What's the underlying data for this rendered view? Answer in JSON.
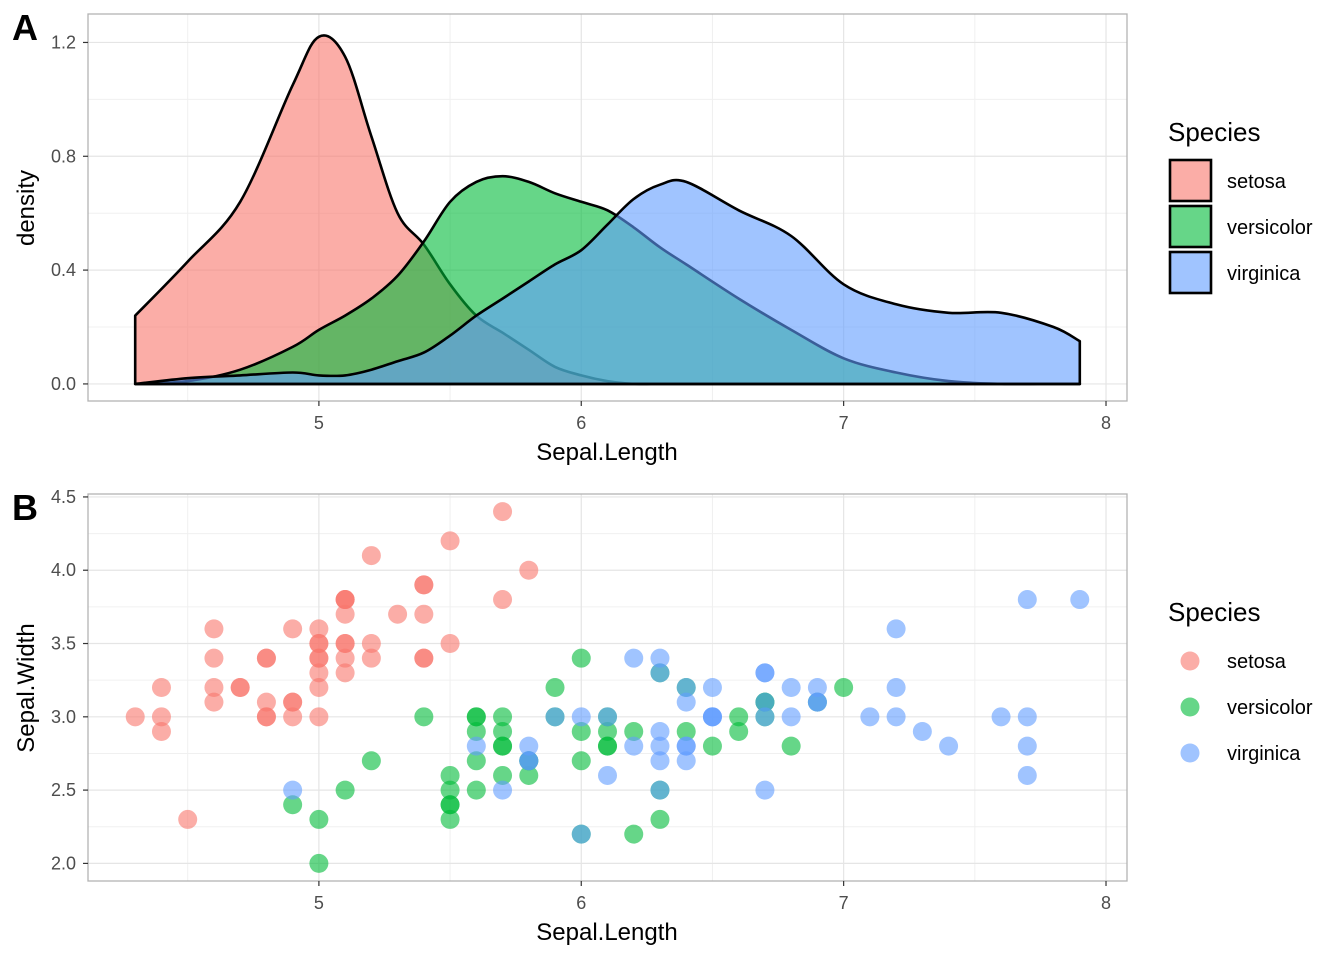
{
  "chart_data": [
    {
      "panel_label": "A",
      "type": "area",
      "title": "",
      "xlabel": "Sepal.Length",
      "ylabel": "density",
      "xlim": [
        4.12,
        8.08
      ],
      "ylim": [
        -0.06,
        1.3
      ],
      "xticks": [
        5,
        6,
        7,
        8
      ],
      "xtick_labels": [
        "5",
        "6",
        "7",
        "8"
      ],
      "yticks": [
        0,
        0.4,
        0.8,
        1.2
      ],
      "ytick_labels": [
        "0.0",
        "0.4",
        "0.8",
        "1.2"
      ],
      "grid": true,
      "legend": {
        "title": "Species",
        "placement": "right",
        "entries": [
          "setosa",
          "versicolor",
          "virginica"
        ]
      },
      "series": [
        {
          "name": "setosa",
          "color": "#F8766D",
          "x": [
            4.3,
            4.5,
            4.7,
            4.9,
            5.0,
            5.1,
            5.2,
            5.3,
            5.4,
            5.5,
            5.6,
            5.7,
            5.8,
            5.9,
            6.0,
            6.1,
            6.2,
            6.3,
            6.4,
            6.6,
            6.8,
            7.0,
            7.2,
            7.4,
            7.6,
            7.8,
            7.9
          ],
          "values": [
            0.24,
            0.43,
            0.64,
            1.05,
            1.22,
            1.15,
            0.87,
            0.6,
            0.49,
            0.35,
            0.24,
            0.18,
            0.12,
            0.06,
            0.03,
            0.01,
            0,
            0,
            0,
            0,
            0,
            0,
            0,
            0,
            0,
            0,
            0
          ]
        },
        {
          "name": "versicolor",
          "color": "#00BA38",
          "x": [
            4.3,
            4.5,
            4.7,
            4.9,
            5.0,
            5.1,
            5.2,
            5.3,
            5.4,
            5.5,
            5.6,
            5.7,
            5.8,
            5.9,
            6.0,
            6.1,
            6.2,
            6.3,
            6.4,
            6.6,
            6.8,
            7.0,
            7.2,
            7.4,
            7.6,
            7.8,
            7.9
          ],
          "values": [
            0,
            0.01,
            0.05,
            0.13,
            0.19,
            0.24,
            0.3,
            0.38,
            0.5,
            0.64,
            0.71,
            0.73,
            0.71,
            0.67,
            0.64,
            0.61,
            0.55,
            0.48,
            0.42,
            0.3,
            0.19,
            0.09,
            0.04,
            0.01,
            0,
            0,
            0
          ]
        },
        {
          "name": "virginica",
          "color": "#619CFF",
          "x": [
            4.3,
            4.5,
            4.7,
            4.9,
            5.0,
            5.1,
            5.2,
            5.3,
            5.4,
            5.5,
            5.6,
            5.7,
            5.8,
            5.9,
            6.0,
            6.1,
            6.2,
            6.3,
            6.4,
            6.6,
            6.8,
            7.0,
            7.2,
            7.4,
            7.6,
            7.8,
            7.9
          ],
          "values": [
            0,
            0.02,
            0.03,
            0.04,
            0.03,
            0.03,
            0.05,
            0.08,
            0.11,
            0.17,
            0.24,
            0.3,
            0.36,
            0.42,
            0.47,
            0.56,
            0.65,
            0.7,
            0.71,
            0.61,
            0.52,
            0.35,
            0.28,
            0.25,
            0.25,
            0.2,
            0.15
          ]
        }
      ]
    },
    {
      "panel_label": "B",
      "type": "scatter",
      "title": "",
      "xlabel": "Sepal.Length",
      "ylabel": "Sepal.Width",
      "xlim": [
        4.12,
        8.08
      ],
      "ylim": [
        1.88,
        4.52
      ],
      "xticks": [
        5,
        6,
        7,
        8
      ],
      "xtick_labels": [
        "5",
        "6",
        "7",
        "8"
      ],
      "yticks": [
        2.0,
        2.5,
        3.0,
        3.5,
        4.0,
        4.5
      ],
      "ytick_labels": [
        "2.0",
        "2.5",
        "3.0",
        "3.5",
        "4.0",
        "4.5"
      ],
      "grid": true,
      "legend": {
        "title": "Species",
        "placement": "right",
        "entries": [
          "setosa",
          "versicolor",
          "virginica"
        ]
      },
      "series": [
        {
          "name": "setosa",
          "color": "#F8766D",
          "points": [
            [
              5.1,
              3.5
            ],
            [
              4.9,
              3.0
            ],
            [
              4.7,
              3.2
            ],
            [
              4.6,
              3.1
            ],
            [
              5.0,
              3.6
            ],
            [
              5.4,
              3.9
            ],
            [
              4.6,
              3.4
            ],
            [
              5.0,
              3.4
            ],
            [
              4.4,
              2.9
            ],
            [
              4.9,
              3.1
            ],
            [
              5.4,
              3.7
            ],
            [
              4.8,
              3.4
            ],
            [
              4.8,
              3.0
            ],
            [
              4.3,
              3.0
            ],
            [
              5.8,
              4.0
            ],
            [
              5.7,
              4.4
            ],
            [
              5.4,
              3.9
            ],
            [
              5.1,
              3.5
            ],
            [
              5.7,
              3.8
            ],
            [
              5.1,
              3.8
            ],
            [
              5.4,
              3.4
            ],
            [
              5.1,
              3.7
            ],
            [
              4.6,
              3.6
            ],
            [
              5.1,
              3.3
            ],
            [
              4.8,
              3.4
            ],
            [
              5.0,
              3.0
            ],
            [
              5.0,
              3.4
            ],
            [
              5.2,
              3.5
            ],
            [
              5.2,
              3.4
            ],
            [
              4.7,
              3.2
            ],
            [
              4.8,
              3.1
            ],
            [
              5.4,
              3.4
            ],
            [
              5.2,
              4.1
            ],
            [
              5.5,
              4.2
            ],
            [
              4.9,
              3.1
            ],
            [
              5.0,
              3.2
            ],
            [
              5.5,
              3.5
            ],
            [
              4.9,
              3.6
            ],
            [
              4.4,
              3.0
            ],
            [
              5.1,
              3.4
            ],
            [
              5.0,
              3.5
            ],
            [
              4.5,
              2.3
            ],
            [
              4.4,
              3.2
            ],
            [
              5.0,
              3.5
            ],
            [
              5.1,
              3.8
            ],
            [
              4.8,
              3.0
            ],
            [
              5.1,
              3.8
            ],
            [
              4.6,
              3.2
            ],
            [
              5.3,
              3.7
            ],
            [
              5.0,
              3.3
            ]
          ]
        },
        {
          "name": "versicolor",
          "color": "#00BA38",
          "points": [
            [
              7.0,
              3.2
            ],
            [
              6.4,
              3.2
            ],
            [
              6.9,
              3.1
            ],
            [
              5.5,
              2.3
            ],
            [
              6.5,
              2.8
            ],
            [
              5.7,
              2.8
            ],
            [
              6.3,
              3.3
            ],
            [
              4.9,
              2.4
            ],
            [
              6.6,
              2.9
            ],
            [
              5.2,
              2.7
            ],
            [
              5.0,
              2.0
            ],
            [
              5.9,
              3.0
            ],
            [
              6.0,
              2.2
            ],
            [
              6.1,
              2.9
            ],
            [
              5.6,
              2.9
            ],
            [
              6.7,
              3.1
            ],
            [
              5.6,
              3.0
            ],
            [
              5.8,
              2.7
            ],
            [
              6.2,
              2.2
            ],
            [
              5.6,
              2.5
            ],
            [
              5.9,
              3.2
            ],
            [
              6.1,
              2.8
            ],
            [
              6.3,
              2.5
            ],
            [
              6.1,
              2.8
            ],
            [
              6.4,
              2.9
            ],
            [
              6.6,
              3.0
            ],
            [
              6.8,
              2.8
            ],
            [
              6.7,
              3.0
            ],
            [
              6.0,
              2.9
            ],
            [
              5.7,
              2.6
            ],
            [
              5.5,
              2.4
            ],
            [
              5.5,
              2.4
            ],
            [
              5.8,
              2.7
            ],
            [
              6.0,
              2.7
            ],
            [
              5.4,
              3.0
            ],
            [
              6.0,
              3.4
            ],
            [
              6.7,
              3.1
            ],
            [
              6.3,
              2.3
            ],
            [
              5.6,
              3.0
            ],
            [
              5.5,
              2.5
            ],
            [
              5.5,
              2.6
            ],
            [
              6.1,
              3.0
            ],
            [
              5.8,
              2.6
            ],
            [
              5.0,
              2.3
            ],
            [
              5.6,
              2.7
            ],
            [
              5.7,
              3.0
            ],
            [
              5.7,
              2.9
            ],
            [
              6.2,
              2.9
            ],
            [
              5.1,
              2.5
            ],
            [
              5.7,
              2.8
            ]
          ]
        },
        {
          "name": "virginica",
          "color": "#619CFF",
          "points": [
            [
              6.3,
              3.3
            ],
            [
              5.8,
              2.7
            ],
            [
              7.1,
              3.0
            ],
            [
              6.3,
              2.9
            ],
            [
              6.5,
              3.0
            ],
            [
              7.6,
              3.0
            ],
            [
              4.9,
              2.5
            ],
            [
              7.3,
              2.9
            ],
            [
              6.7,
              2.5
            ],
            [
              7.2,
              3.6
            ],
            [
              6.5,
              3.2
            ],
            [
              6.4,
              2.7
            ],
            [
              6.8,
              3.0
            ],
            [
              5.7,
              2.5
            ],
            [
              5.8,
              2.8
            ],
            [
              6.4,
              3.2
            ],
            [
              6.5,
              3.0
            ],
            [
              7.7,
              3.8
            ],
            [
              7.7,
              2.6
            ],
            [
              6.0,
              2.2
            ],
            [
              6.9,
              3.2
            ],
            [
              5.6,
              2.8
            ],
            [
              7.7,
              2.8
            ],
            [
              6.3,
              2.7
            ],
            [
              6.7,
              3.3
            ],
            [
              7.2,
              3.2
            ],
            [
              6.2,
              2.8
            ],
            [
              6.1,
              3.0
            ],
            [
              6.4,
              2.8
            ],
            [
              7.2,
              3.0
            ],
            [
              7.4,
              2.8
            ],
            [
              7.9,
              3.8
            ],
            [
              6.4,
              2.8
            ],
            [
              6.3,
              2.8
            ],
            [
              6.1,
              2.6
            ],
            [
              7.7,
              3.0
            ],
            [
              6.3,
              3.4
            ],
            [
              6.4,
              3.1
            ],
            [
              6.0,
              3.0
            ],
            [
              6.9,
              3.1
            ],
            [
              6.7,
              3.1
            ],
            [
              6.9,
              3.1
            ],
            [
              5.8,
              2.7
            ],
            [
              6.8,
              3.2
            ],
            [
              6.7,
              3.3
            ],
            [
              6.7,
              3.0
            ],
            [
              6.3,
              2.5
            ],
            [
              6.5,
              3.0
            ],
            [
              6.2,
              3.4
            ],
            [
              5.9,
              3.0
            ]
          ]
        }
      ]
    }
  ]
}
